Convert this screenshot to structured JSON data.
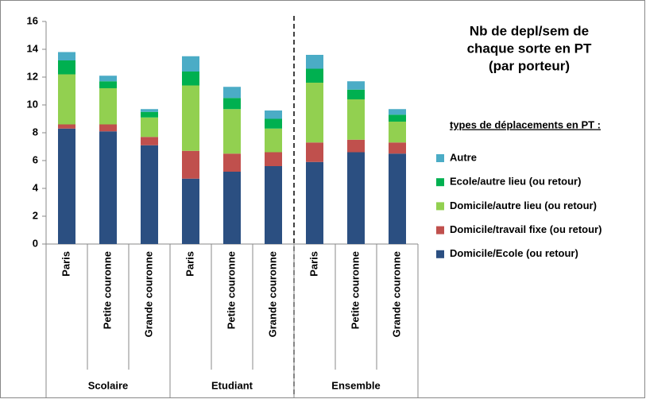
{
  "chart_data": {
    "type": "stacked_bar",
    "title": [
      "Nb de depl/sem de",
      "chaque sorte en PT",
      "(par porteur)"
    ],
    "legend_title": "types de déplacements en PT :",
    "categories": [
      "Paris",
      "Petite couronne",
      "Grande couronne",
      "Paris",
      "Petite couronne",
      "Grande couronne",
      "Paris",
      "Petite couronne",
      "Grande couronne"
    ],
    "groups": [
      {
        "label": "Scolaire",
        "size": 3
      },
      {
        "label": "Etudiant",
        "size": 3
      },
      {
        "label": "Ensemble",
        "size": 3
      }
    ],
    "series": [
      {
        "name": "Domicile/Ecole (ou retour)",
        "color": "#2b4f81",
        "values": [
          8.3,
          8.1,
          7.1,
          4.7,
          5.2,
          5.6,
          5.9,
          6.6,
          6.5
        ]
      },
      {
        "name": "Domicile/travail fixe (ou retour)",
        "color": "#c0504d",
        "values": [
          0.3,
          0.5,
          0.6,
          2.0,
          1.3,
          1.0,
          1.4,
          0.9,
          0.8
        ]
      },
      {
        "name": "Domicile/autre lieu (ou retour)",
        "color": "#92d050",
        "values": [
          3.6,
          2.6,
          1.4,
          4.7,
          3.2,
          1.7,
          4.3,
          2.9,
          1.5
        ]
      },
      {
        "name": "Ecole/autre lieu (ou retour)",
        "color": "#00b050",
        "values": [
          1.0,
          0.5,
          0.4,
          1.0,
          0.8,
          0.7,
          1.0,
          0.7,
          0.5
        ]
      },
      {
        "name": "Autre",
        "color": "#4bacc6",
        "values": [
          0.6,
          0.4,
          0.2,
          1.1,
          0.8,
          0.6,
          1.0,
          0.6,
          0.4
        ]
      }
    ],
    "ylim": [
      0,
      16
    ],
    "yticks": [
      0,
      2,
      4,
      6,
      8,
      10,
      12,
      14,
      16
    ]
  }
}
